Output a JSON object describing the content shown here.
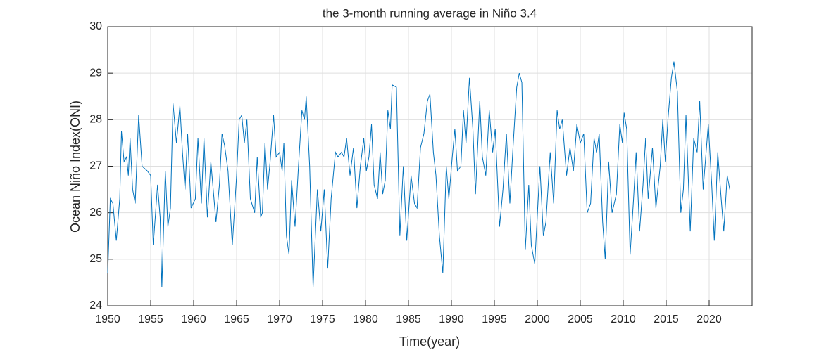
{
  "chart_data": {
    "type": "line",
    "title": "the 3-month running average in Niño 3.4",
    "xlabel": "Time(year)",
    "ylabel": "Ocean Niño Index(ONI)",
    "xlim": [
      1950,
      2025
    ],
    "xticks": [
      1950,
      1955,
      1960,
      1965,
      1970,
      1975,
      1980,
      1985,
      1990,
      1995,
      2000,
      2005,
      2010,
      2015,
      2020
    ],
    "ylim": [
      24,
      30
    ],
    "yticks": [
      24,
      25,
      26,
      27,
      28,
      29,
      30
    ],
    "grid": true,
    "series": [
      {
        "color": "#0072bd",
        "x": [
          1950.0,
          1950.3,
          1950.6,
          1951.0,
          1951.4,
          1951.6,
          1951.9,
          1952.2,
          1952.4,
          1952.6,
          1952.9,
          1953.2,
          1953.6,
          1954.0,
          1954.6,
          1955.0,
          1955.3,
          1955.8,
          1956.1,
          1956.3,
          1956.7,
          1957.0,
          1957.3,
          1957.6,
          1958.0,
          1958.4,
          1958.7,
          1959.0,
          1959.3,
          1959.7,
          1960.2,
          1960.5,
          1960.9,
          1961.2,
          1961.6,
          1962.0,
          1962.6,
          1963.0,
          1963.3,
          1963.6,
          1964.0,
          1964.5,
          1965.0,
          1965.3,
          1965.6,
          1965.9,
          1966.2,
          1966.6,
          1967.1,
          1967.4,
          1967.8,
          1968.0,
          1968.3,
          1968.6,
          1968.9,
          1969.3,
          1969.6,
          1970.0,
          1970.3,
          1970.5,
          1970.8,
          1971.1,
          1971.4,
          1971.8,
          1972.2,
          1972.6,
          1972.9,
          1973.1,
          1973.5,
          1973.9,
          1974.4,
          1974.8,
          1975.2,
          1975.6,
          1976.0,
          1976.5,
          1976.8,
          1977.2,
          1977.5,
          1977.8,
          1978.2,
          1978.6,
          1979.0,
          1979.4,
          1979.8,
          1980.1,
          1980.4,
          1980.7,
          1981.0,
          1981.4,
          1981.7,
          1982.0,
          1982.3,
          1982.6,
          1982.9,
          1983.1,
          1983.6,
          1984.0,
          1984.4,
          1984.8,
          1985.3,
          1985.7,
          1986.0,
          1986.4,
          1986.8,
          1987.2,
          1987.5,
          1987.9,
          1988.2,
          1988.6,
          1989.0,
          1989.4,
          1989.7,
          1990.1,
          1990.4,
          1990.7,
          1991.1,
          1991.4,
          1991.7,
          1992.1,
          1992.5,
          1992.8,
          1993.3,
          1993.6,
          1994.0,
          1994.4,
          1994.8,
          1995.1,
          1995.6,
          1996.0,
          1996.4,
          1996.8,
          1997.2,
          1997.6,
          1997.9,
          1998.2,
          1998.6,
          1999.0,
          1999.3,
          1999.7,
          2000.3,
          2000.7,
          2001.0,
          2001.5,
          2001.9,
          2002.3,
          2002.6,
          2002.9,
          2003.4,
          2003.8,
          2004.2,
          2004.6,
          2005.0,
          2005.4,
          2005.8,
          2006.2,
          2006.6,
          2006.9,
          2007.2,
          2007.6,
          2007.9,
          2008.3,
          2008.7,
          2009.2,
          2009.6,
          2009.9,
          2010.1,
          2010.4,
          2010.8,
          2011.2,
          2011.5,
          2011.9,
          2012.3,
          2012.6,
          2012.9,
          2013.4,
          2013.8,
          2014.3,
          2014.6,
          2014.9,
          2015.2,
          2015.6,
          2015.9,
          2016.3,
          2016.7,
          2017.0,
          2017.3,
          2017.8,
          2018.2,
          2018.6,
          2018.9,
          2019.3,
          2019.6,
          2019.9,
          2020.3,
          2020.6,
          2021.0,
          2021.4,
          2021.7,
          2022.1,
          2022.4
        ],
        "values": [
          24.7,
          26.3,
          26.2,
          25.4,
          26.3,
          27.75,
          27.1,
          27.2,
          26.8,
          27.6,
          26.5,
          26.2,
          28.1,
          27.0,
          26.9,
          26.8,
          25.3,
          26.6,
          25.9,
          24.4,
          26.9,
          25.7,
          26.1,
          28.35,
          27.5,
          28.3,
          27.3,
          26.5,
          27.7,
          26.1,
          26.3,
          27.6,
          26.2,
          27.6,
          25.9,
          27.1,
          25.8,
          26.6,
          27.7,
          27.45,
          26.9,
          25.3,
          26.8,
          28.0,
          28.1,
          27.5,
          28.0,
          26.3,
          26.0,
          27.2,
          25.9,
          26.0,
          27.5,
          26.5,
          27.1,
          28.1,
          27.2,
          27.3,
          26.9,
          27.5,
          25.5,
          25.1,
          26.7,
          25.7,
          27.0,
          28.2,
          28.0,
          28.5,
          27.0,
          24.4,
          26.5,
          25.6,
          26.5,
          24.8,
          26.3,
          27.3,
          27.2,
          27.3,
          27.2,
          27.6,
          26.8,
          27.4,
          26.1,
          27.0,
          27.6,
          26.9,
          27.2,
          27.9,
          26.6,
          26.3,
          27.3,
          26.4,
          26.7,
          28.2,
          27.8,
          28.75,
          28.7,
          25.5,
          27.0,
          25.4,
          26.8,
          26.2,
          26.1,
          27.4,
          27.7,
          28.4,
          28.55,
          27.3,
          26.8,
          25.5,
          24.7,
          27.0,
          26.3,
          27.2,
          27.8,
          26.9,
          27.0,
          28.2,
          27.5,
          28.9,
          27.8,
          26.4,
          28.4,
          27.2,
          26.8,
          28.2,
          27.3,
          27.8,
          25.7,
          26.5,
          27.7,
          26.2,
          27.5,
          28.7,
          29.0,
          28.8,
          25.2,
          26.6,
          25.3,
          24.9,
          27.0,
          25.5,
          25.8,
          27.3,
          26.2,
          28.2,
          27.8,
          28.0,
          26.8,
          27.4,
          26.9,
          27.9,
          27.5,
          27.7,
          26.0,
          26.2,
          27.6,
          27.3,
          27.7,
          25.8,
          25.0,
          27.1,
          26.0,
          26.4,
          27.9,
          27.5,
          28.15,
          27.8,
          25.1,
          26.3,
          27.3,
          25.6,
          26.6,
          27.6,
          26.3,
          27.4,
          26.1,
          27.0,
          28.0,
          27.1,
          28.0,
          28.9,
          29.25,
          28.6,
          26.0,
          26.5,
          28.1,
          25.6,
          27.6,
          27.3,
          28.4,
          26.5,
          27.2,
          27.9,
          26.6,
          25.4,
          27.3,
          26.3,
          25.6,
          26.8,
          26.5
        ]
      }
    ]
  }
}
